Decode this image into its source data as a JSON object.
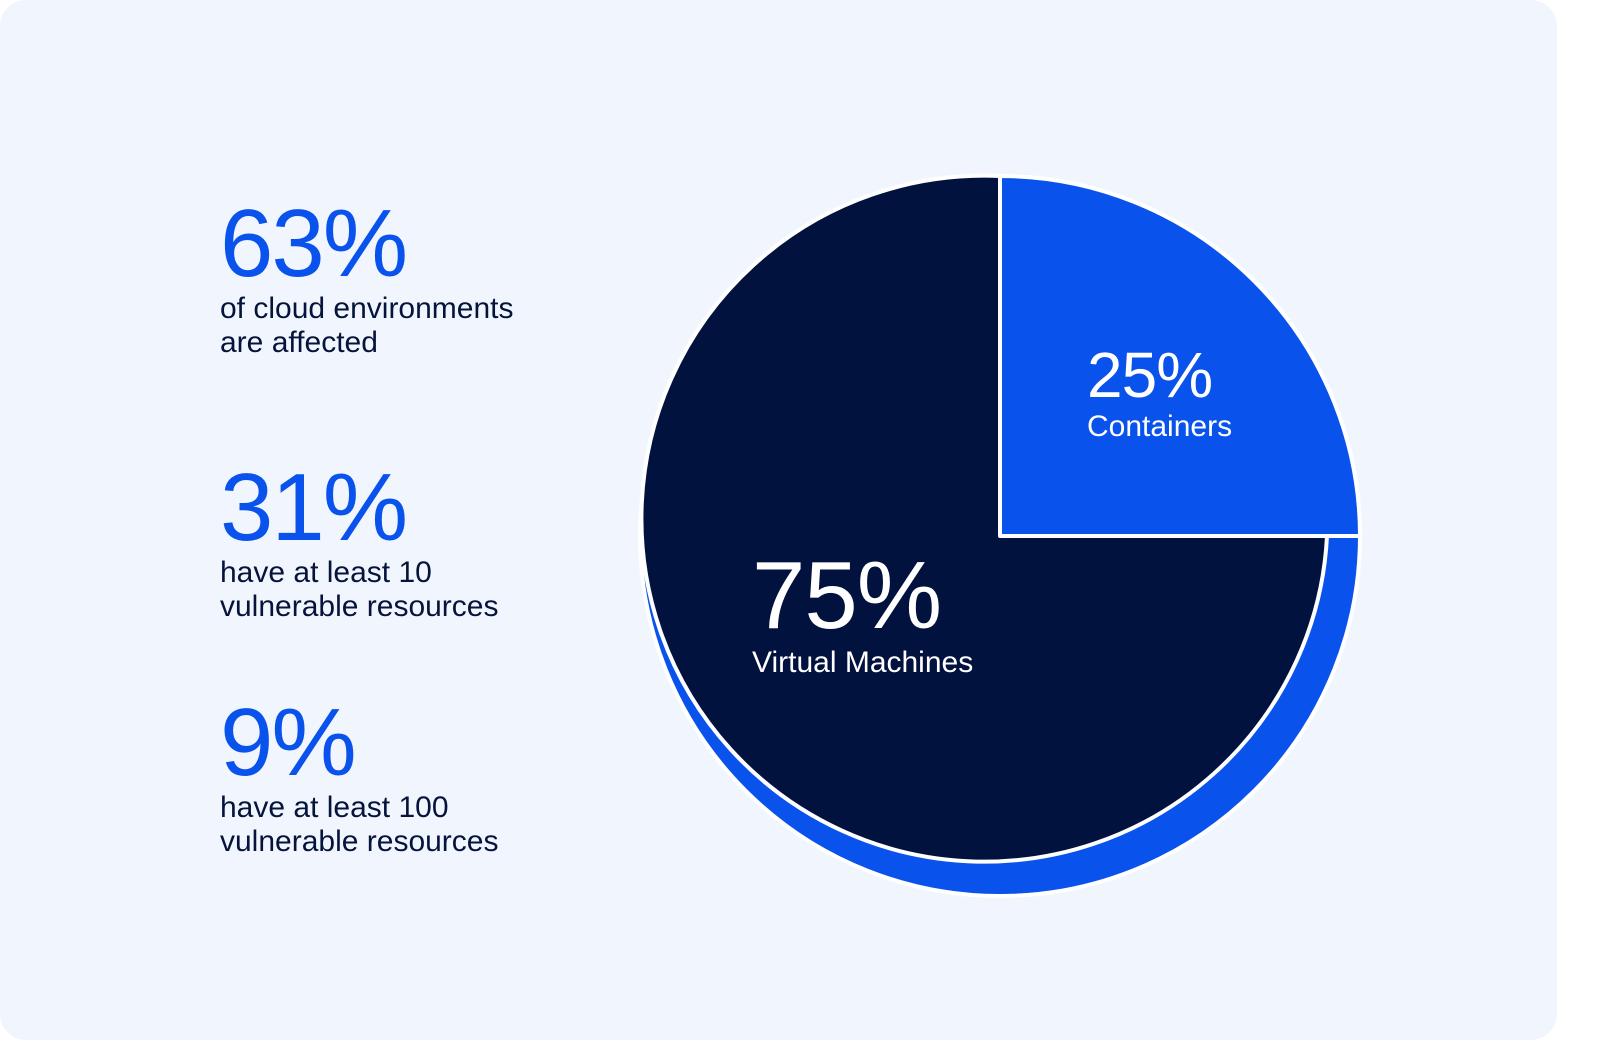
{
  "stats": [
    {
      "value": "63%",
      "text_line1": "of cloud environments",
      "text_line2": "are affected"
    },
    {
      "value": "31%",
      "text_line1": "have at least 10",
      "text_line2": "vulnerable resources"
    },
    {
      "value": "9%",
      "text_line1": "have at least 100",
      "text_line2": "vulnerable resources"
    }
  ],
  "colors": {
    "background": "#f1f6fe",
    "accent": "#0a52ec",
    "dark": "#02123e",
    "text": "#06143c"
  },
  "chart_data": {
    "type": "pie",
    "title": "",
    "slices": [
      {
        "name": "Containers",
        "value": 25,
        "label": "25%",
        "color": "#0a52ec"
      },
      {
        "name": "Virtual Machines",
        "value": 75,
        "label": "75%",
        "color": "#02123e"
      }
    ]
  }
}
